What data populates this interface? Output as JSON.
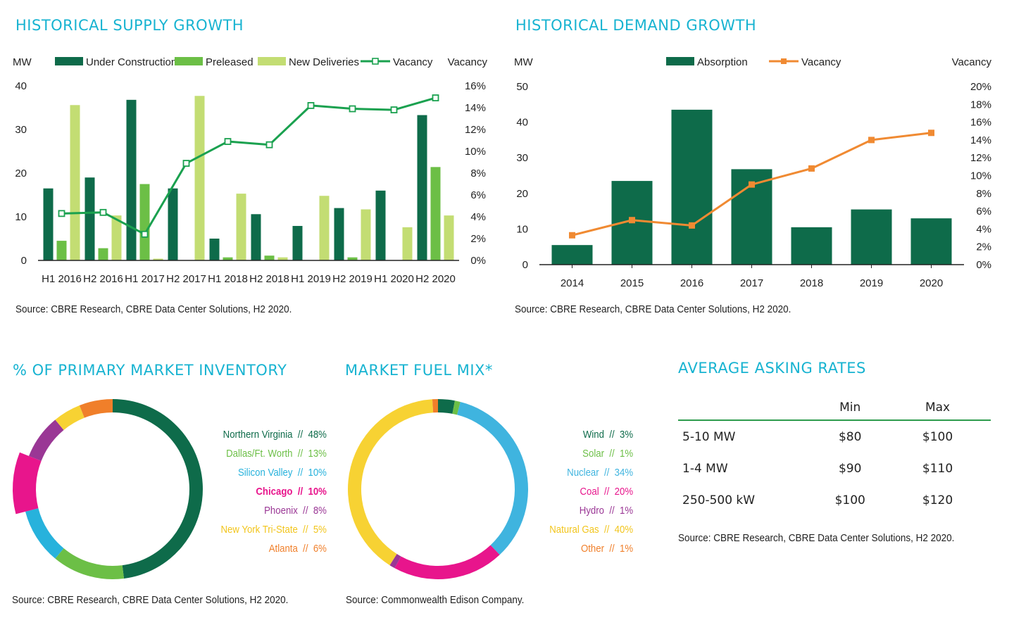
{
  "supply": {
    "title": "HISTORICAL SUPPLY GROWTH",
    "source": "Source: CBRE Research, CBRE Data Center Solutions, H2 2020."
  },
  "demand": {
    "title": "HISTORICAL DEMAND GROWTH",
    "source": "Source: CBRE Research, CBRE Data Center Solutions, H2 2020."
  },
  "inventory": {
    "title": "% OF PRIMARY MARKET INVENTORY",
    "source": "Source: CBRE Research, CBRE Data Center Solutions, H2 2020."
  },
  "fuel": {
    "title": "MARKET FUEL MIX*",
    "source": "Source: Commonwealth Edison Company."
  },
  "rates": {
    "title": "AVERAGE ASKING RATES",
    "headers": [
      "",
      "Min",
      "Max"
    ],
    "rows": [
      [
        "5-10 MW",
        "$80",
        "$100"
      ],
      [
        "1-4 MW",
        "$90",
        "$110"
      ],
      [
        "250-500 kW",
        "$100",
        "$120"
      ]
    ],
    "source": "Source: CBRE Research, CBRE Data Center Solutions, H2 2020."
  },
  "chart_data": [
    {
      "id": "supply",
      "type": "bar",
      "title": "HISTORICAL SUPPLY GROWTH",
      "ylabel": "MW",
      "y2label": "Vacancy",
      "ylim": [
        0,
        40
      ],
      "yticks": [
        "0",
        "10",
        "20",
        "30",
        "40"
      ],
      "y2lim": [
        0,
        16
      ],
      "y2ticks": [
        "0%",
        "2%",
        "4%",
        "6%",
        "8%",
        "10%",
        "12%",
        "14%",
        "16%"
      ],
      "categories": [
        "H1 2016",
        "H2 2016",
        "H1 2017",
        "H2 2017",
        "H1 2018",
        "H2 2018",
        "H1 2019",
        "H2 2019",
        "H1 2020",
        "H2 2020"
      ],
      "series": [
        {
          "name": "Under Construction",
          "color": "#0e6b4a",
          "values": [
            16.5,
            19,
            36.8,
            16.5,
            5,
            10.6,
            7.9,
            12,
            16,
            33.3
          ]
        },
        {
          "name": "Preleased",
          "color": "#6cbf46",
          "values": [
            4.5,
            2.8,
            17.5,
            0,
            0.7,
            1.1,
            0,
            0.7,
            0,
            21.4
          ]
        },
        {
          "name": "New Deliveries",
          "color": "#c3dd73",
          "values": [
            35.6,
            10.3,
            0.4,
            37.7,
            15.3,
            0.7,
            14.8,
            11.7,
            7.6,
            10.3
          ]
        },
        {
          "name": "Vacancy",
          "type": "line",
          "axis": "y2",
          "color": "#1aa14f",
          "values": [
            4.3,
            4.4,
            2.4,
            8.9,
            10.9,
            10.6,
            14.2,
            13.9,
            13.8,
            14.9
          ]
        }
      ],
      "source": "Source: CBRE Research, CBRE Data Center Solutions, H2 2020."
    },
    {
      "id": "demand",
      "type": "bar",
      "title": "HISTORICAL DEMAND GROWTH",
      "ylabel": "MW",
      "y2label": "Vacancy",
      "ylim": [
        0,
        50
      ],
      "yticks": [
        "0",
        "10",
        "20",
        "30",
        "40",
        "50"
      ],
      "y2lim": [
        0,
        20
      ],
      "y2ticks": [
        "0%",
        "2%",
        "4%",
        "6%",
        "8%",
        "10%",
        "12%",
        "14%",
        "16%",
        "18%",
        "20%"
      ],
      "categories": [
        "2014",
        "2015",
        "2016",
        "2017",
        "2018",
        "2019",
        "2020"
      ],
      "series": [
        {
          "name": "Absorption",
          "color": "#0e6b4a",
          "values": [
            5.5,
            23.5,
            43.5,
            26.8,
            10.5,
            15.5,
            13
          ]
        },
        {
          "name": "Vacancy",
          "type": "line",
          "axis": "y2",
          "color": "#f08a32",
          "values": [
            3.3,
            5,
            4.4,
            9,
            10.8,
            14,
            14.8
          ]
        }
      ],
      "source": "Source: CBRE Research, CBRE Data Center Solutions, H2 2020."
    },
    {
      "id": "inventory",
      "type": "pie",
      "title": "% OF PRIMARY MARKET INVENTORY",
      "slices": [
        {
          "label": "Northern Virginia",
          "value": 48,
          "pct": "48%",
          "color": "#0e6b4a"
        },
        {
          "label": "Dallas/Ft. Worth",
          "value": 13,
          "pct": "13%",
          "color": "#6cbf46"
        },
        {
          "label": "Silicon Valley",
          "value": 10,
          "pct": "10%",
          "color": "#27b2dc"
        },
        {
          "label": "Chicago",
          "value": 10,
          "pct": "10%",
          "color": "#e8158c",
          "highlight": true
        },
        {
          "label": "Phoenix",
          "value": 8,
          "pct": "8%",
          "color": "#9a3795"
        },
        {
          "label": "New York Tri-State",
          "value": 5,
          "pct": "5%",
          "color": "#f7d233"
        },
        {
          "label": "Atlanta",
          "value": 6,
          "pct": "6%",
          "color": "#f07f2a"
        }
      ],
      "source": "Source: CBRE Research, CBRE Data Center Solutions, H2 2020."
    },
    {
      "id": "fuel",
      "type": "pie",
      "title": "MARKET FUEL MIX*",
      "slices": [
        {
          "label": "Wind",
          "value": 3,
          "pct": "3%",
          "color": "#0e6b4a"
        },
        {
          "label": "Solar",
          "value": 1,
          "pct": "1%",
          "color": "#6cbf46"
        },
        {
          "label": "Nuclear",
          "value": 34,
          "pct": "34%",
          "color": "#3fb4df"
        },
        {
          "label": "Coal",
          "value": 20,
          "pct": "20%",
          "color": "#e8158c"
        },
        {
          "label": "Hydro",
          "value": 1,
          "pct": "1%",
          "color": "#9a3795"
        },
        {
          "label": "Natural Gas",
          "value": 40,
          "pct": "40%",
          "color": "#f7d233"
        },
        {
          "label": "Other",
          "value": 1,
          "pct": "1%",
          "color": "#f07f2a"
        }
      ],
      "source": "Source: Commonwealth Edison Company."
    }
  ]
}
